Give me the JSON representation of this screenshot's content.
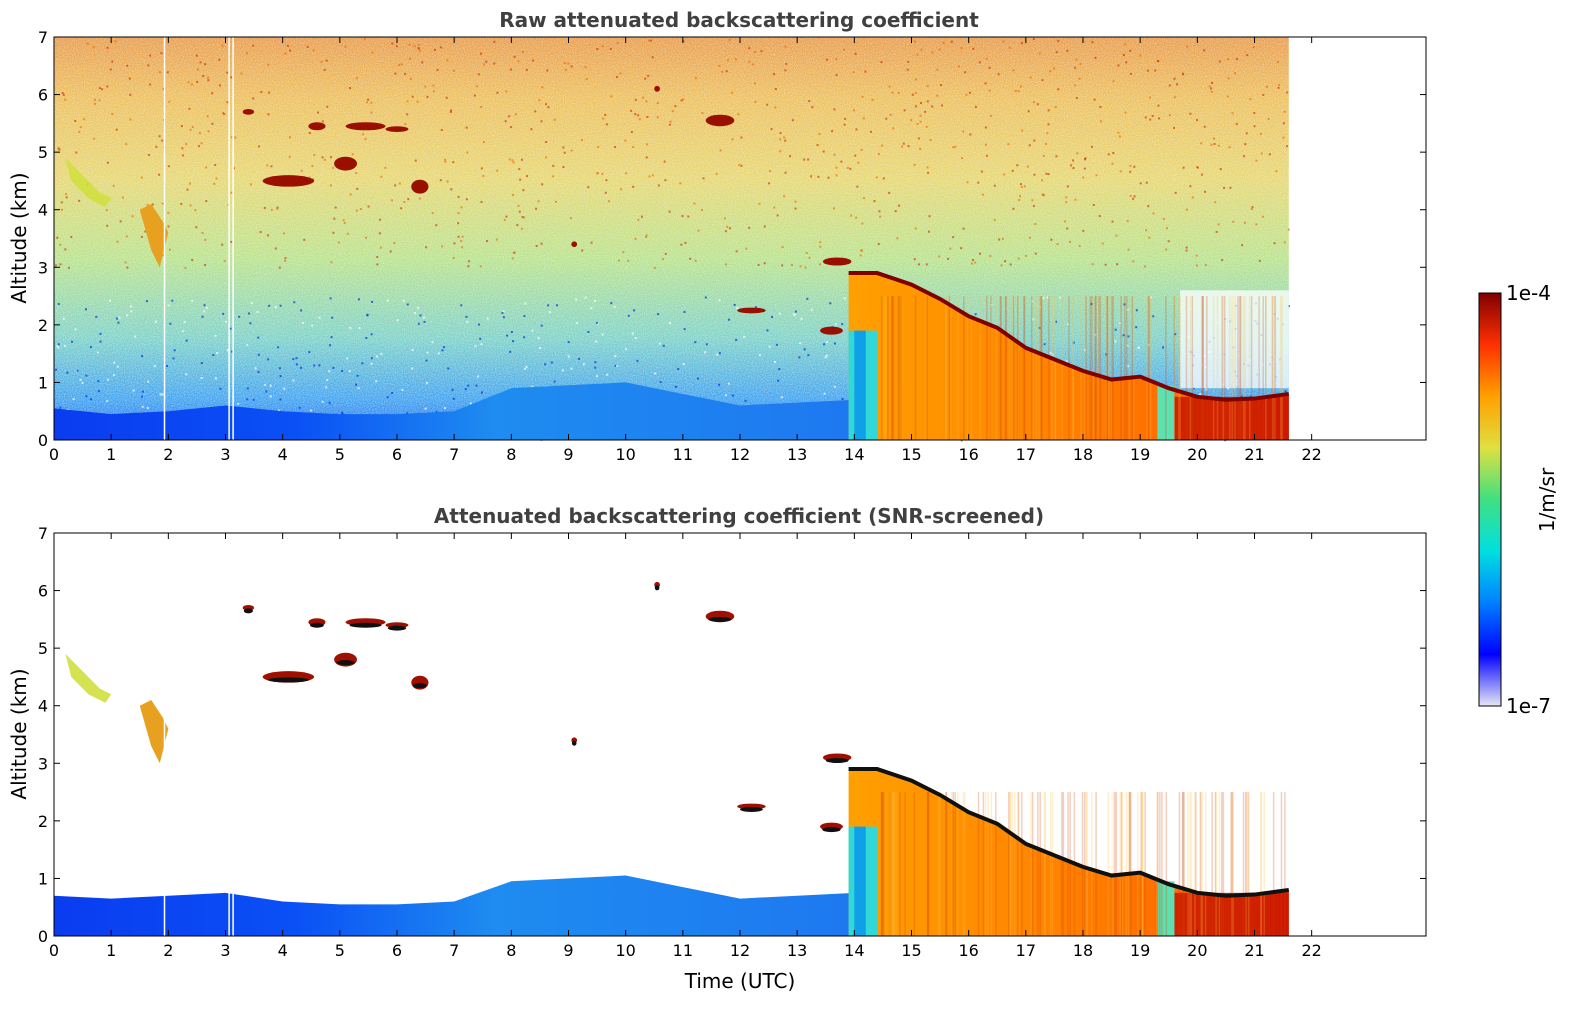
{
  "chart_data": [
    {
      "type": "heatmap",
      "title": "Raw attenuated backscattering coefficient",
      "xlabel": "",
      "ylabel": "Altitude (km)",
      "xlim": [
        0,
        24
      ],
      "ylim": [
        0,
        7
      ],
      "x_ticks": [
        "0",
        "1",
        "2",
        "3",
        "4",
        "5",
        "6",
        "7",
        "8",
        "9",
        "10",
        "11",
        "12",
        "13",
        "14",
        "15",
        "16",
        "17",
        "18",
        "19",
        "20",
        "21",
        "22"
      ],
      "y_ticks": [
        "0",
        "1",
        "2",
        "3",
        "4",
        "5",
        "6",
        "7"
      ],
      "data_end_time": 21.6,
      "grid": false
    },
    {
      "type": "heatmap",
      "title": "Attenuated backscattering coefficient (SNR-screened)",
      "xlabel": "Time (UTC)",
      "ylabel": "Altitude (km)",
      "xlim": [
        0,
        24
      ],
      "ylim": [
        0,
        7
      ],
      "x_ticks": [
        "0",
        "1",
        "2",
        "3",
        "4",
        "5",
        "6",
        "7",
        "8",
        "9",
        "10",
        "11",
        "12",
        "13",
        "14",
        "15",
        "16",
        "17",
        "18",
        "19",
        "20",
        "21",
        "22"
      ],
      "y_ticks": [
        "0",
        "1",
        "2",
        "3",
        "4",
        "5",
        "6",
        "7"
      ],
      "data_end_time": 21.6,
      "grid": false
    }
  ],
  "colorbar": {
    "label": "1/m/sr",
    "max_label": "1e-4",
    "min_label": "1e-7",
    "scale": "log",
    "colormap": [
      "#e6e6f5",
      "#0000ff",
      "#0080ff",
      "#00e0e0",
      "#40e080",
      "#e0e040",
      "#ffa000",
      "#ff3000",
      "#800000"
    ]
  }
}
